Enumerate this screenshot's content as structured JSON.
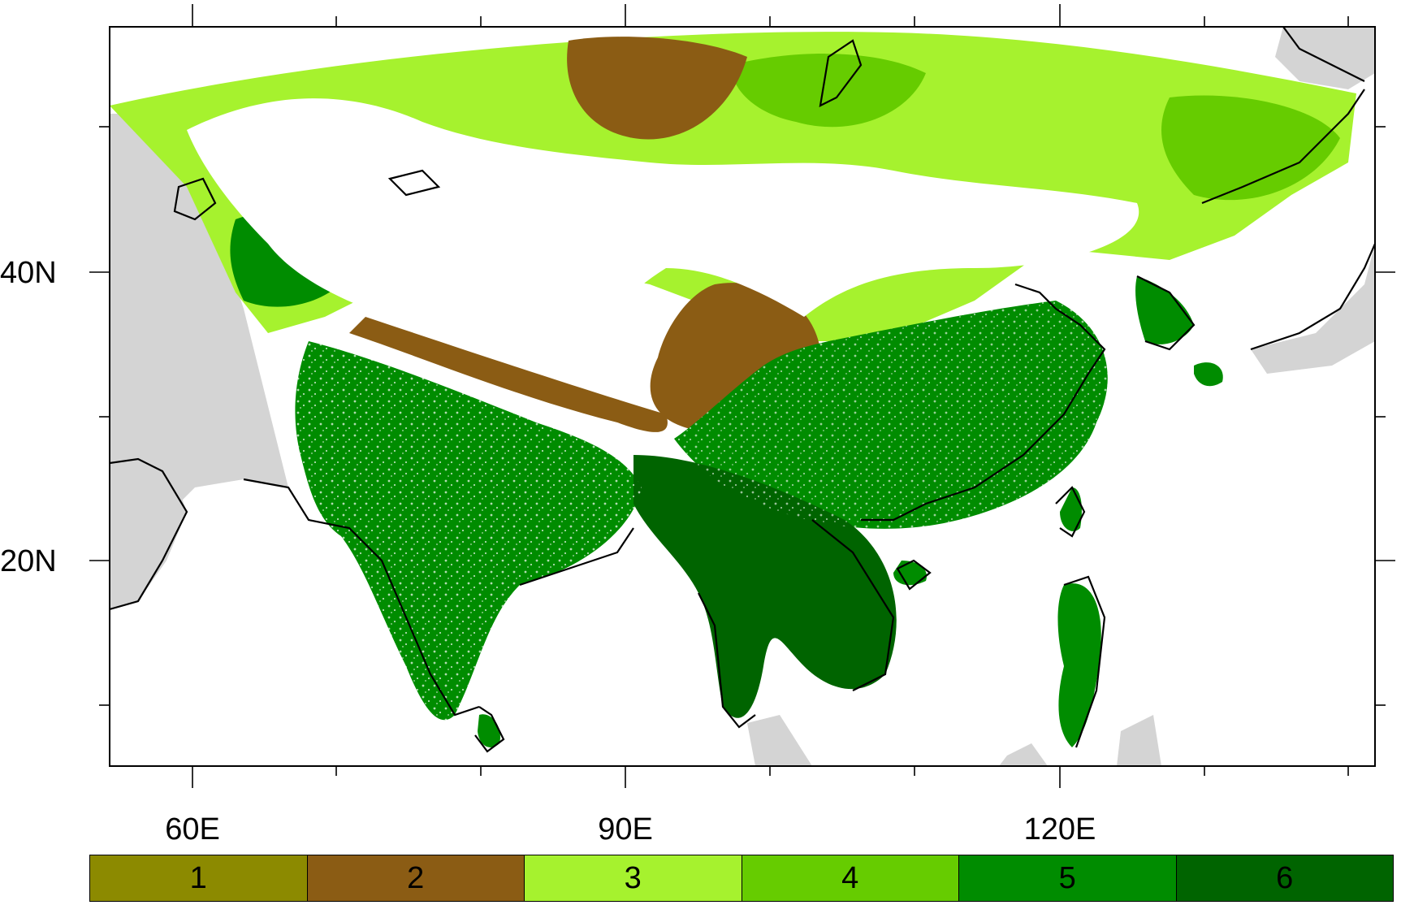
{
  "map": {
    "lat_labels": [
      "40N",
      "20N"
    ],
    "lon_labels": [
      "60E",
      "90E",
      "120E"
    ],
    "colorbar": [
      {
        "label": "1",
        "color": "#8c8a00"
      },
      {
        "label": "2",
        "color": "#8b5c14"
      },
      {
        "label": "3",
        "color": "#a6f22e"
      },
      {
        "label": "4",
        "color": "#66cc00"
      },
      {
        "label": "5",
        "color": "#008c00"
      },
      {
        "label": "6",
        "color": "#006400"
      }
    ],
    "land_outside_domain_color": "#d4d4d4",
    "ocean_color": "#ffffff"
  }
}
